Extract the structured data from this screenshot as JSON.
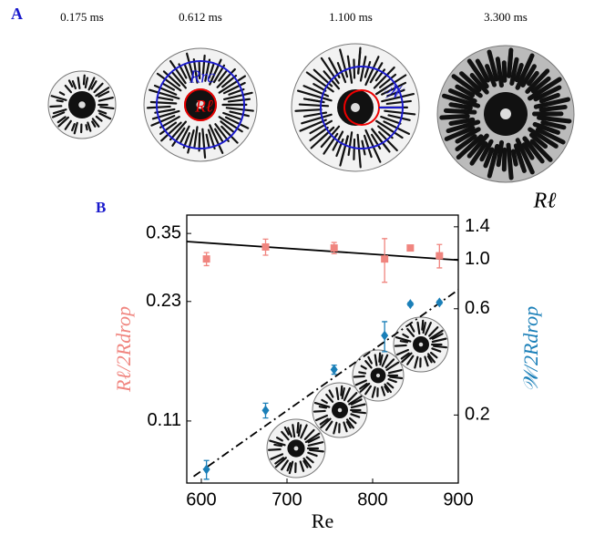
{
  "panel_a": {
    "label": "A",
    "times": [
      "0.175 ms",
      "0.612 ms",
      "1.100 ms",
      "3.300 ms"
    ],
    "annotations": {
      "r_rc": "Rrc",
      "r_l": "Rℓ",
      "w": "𝒲",
      "r_l_bottom": "Rℓ"
    }
  },
  "chart_data": {
    "type": "scatter",
    "panel_label": "B",
    "xlabel": "Re",
    "ylabel": "Rℓ/2Rdrop",
    "y2label": "𝒲/2Rdrop",
    "xlim": [
      583,
      900
    ],
    "xticks": [
      600,
      700,
      800,
      900
    ],
    "ylim": [
      0.075,
      0.392
    ],
    "yticks": [
      0.11,
      0.23,
      0.35
    ],
    "log_y": true,
    "y2lim": [
      0.099,
      1.58
    ],
    "y2ticks": [
      0.2,
      0.6,
      {
        "value": 1,
        "label": "1.0"
      },
      1.4
    ],
    "log_y2": true,
    "series": [
      {
        "color": "#f0857f",
        "marker": "square",
        "x": [
          606,
          675,
          755,
          814,
          844,
          878
        ],
        "values": [
          0.299,
          0.322,
          0.32,
          0.299,
          0.32,
          0.305
        ],
        "errors": [
          0.012,
          0.016,
          0.011,
          0.04,
          0.005,
          0.022
        ]
      },
      {
        "color": "#1a7fb8",
        "marker": "diamond",
        "axis": "y2",
        "x": [
          606,
          675,
          755,
          814,
          844,
          878
        ],
        "values": [
          0.114,
          0.21,
          0.32,
          0.455,
          0.63,
          0.64
        ],
        "errors": [
          0.011,
          0.016,
          0.015,
          0.07,
          0.01,
          0.01
        ]
      }
    ],
    "lines": [
      {
        "style": "solid",
        "color": "#000000",
        "x": [
          583,
          900
        ],
        "values": [
          0.333,
          0.297
        ]
      },
      {
        "style": "dash-dot",
        "color": "#000000",
        "axis": "y2",
        "x": [
          591,
          900
        ],
        "values": [
          0.106,
          0.73
        ]
      }
    ]
  }
}
